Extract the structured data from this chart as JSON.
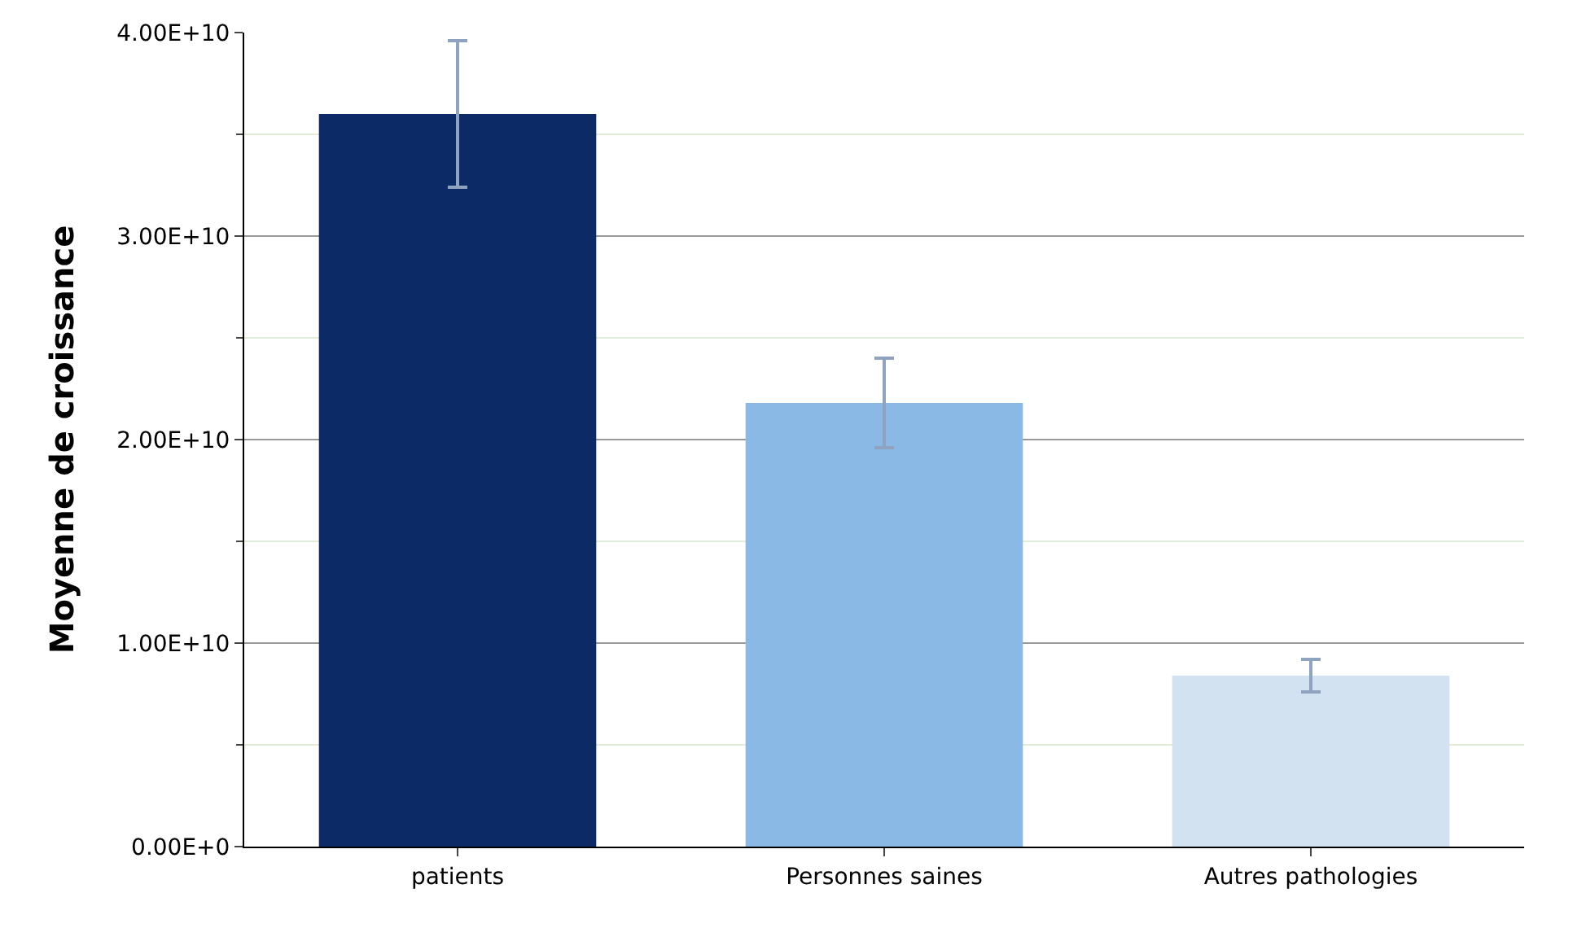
{
  "chart_data": {
    "type": "bar",
    "ylabel": "Moyenne de croissance",
    "categories": [
      "patients",
      "Personnes saines",
      "Autres pathologies"
    ],
    "values": [
      36000000000.0,
      21800000000.0,
      8400000000.0
    ],
    "colors": [
      "#0b2a66",
      "#8ab9e6",
      "#d3e2f1"
    ],
    "errors": [
      3600000000.0,
      2200000000.0,
      800000000.0
    ],
    "ylim": [
      0,
      40000000000.0
    ],
    "yticks": [
      {
        "value": 0,
        "label": "0.00E+0"
      },
      {
        "value": 10000000000.0,
        "label": "1.00E+10"
      },
      {
        "value": 20000000000.0,
        "label": "2.00E+10"
      },
      {
        "value": 30000000000.0,
        "label": "3.00E+10"
      },
      {
        "value": 40000000000.0,
        "label": "4.00E+10"
      }
    ],
    "grid": "y"
  }
}
